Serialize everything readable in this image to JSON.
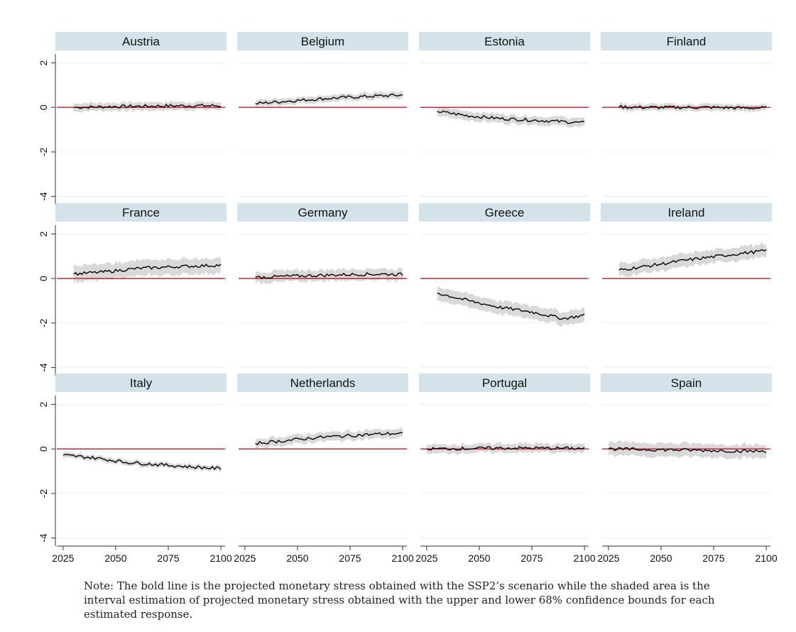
{
  "chart_data": {
    "type": "line",
    "layout": "3x4 small multiples",
    "x_ticks": [
      2025,
      2050,
      2075,
      2100
    ],
    "y_ticks": [
      2,
      0,
      -2,
      -4
    ],
    "xlim": [
      2022,
      2102
    ],
    "ylim": [
      -4.3,
      2.4
    ],
    "reference_line_y": 0,
    "grid": "horizontal",
    "colors": {
      "line": "#000000",
      "band": "#d9d9d9",
      "reference": "#c0172a",
      "strip": "#d4e3ea",
      "grid": "#ececec"
    },
    "panels": [
      {
        "title": "Austria",
        "start": 2030,
        "end": 2100,
        "points": [
          [
            2030,
            0.0
          ],
          [
            2045,
            0.03
          ],
          [
            2060,
            0.05
          ],
          [
            2075,
            0.07
          ],
          [
            2090,
            0.08
          ],
          [
            2100,
            0.07
          ]
        ],
        "band": 0.18
      },
      {
        "title": "Belgium",
        "start": 2030,
        "end": 2100,
        "points": [
          [
            2030,
            0.17
          ],
          [
            2045,
            0.28
          ],
          [
            2060,
            0.38
          ],
          [
            2075,
            0.46
          ],
          [
            2090,
            0.52
          ],
          [
            2100,
            0.55
          ]
        ],
        "band": 0.15
      },
      {
        "title": "Estonia",
        "start": 2030,
        "end": 2100,
        "points": [
          [
            2030,
            -0.18
          ],
          [
            2045,
            -0.38
          ],
          [
            2060,
            -0.5
          ],
          [
            2075,
            -0.57
          ],
          [
            2090,
            -0.64
          ],
          [
            2100,
            -0.7
          ]
        ],
        "band": 0.2
      },
      {
        "title": "Finland",
        "start": 2030,
        "end": 2100,
        "points": [
          [
            2030,
            0.02
          ],
          [
            2045,
            0.0
          ],
          [
            2060,
            0.0
          ],
          [
            2075,
            0.0
          ],
          [
            2090,
            -0.03
          ],
          [
            2100,
            -0.02
          ]
        ],
        "band": 0.15
      },
      {
        "title": "France",
        "start": 2030,
        "end": 2100,
        "points": [
          [
            2030,
            0.2
          ],
          [
            2045,
            0.3
          ],
          [
            2060,
            0.45
          ],
          [
            2075,
            0.52
          ],
          [
            2090,
            0.57
          ],
          [
            2100,
            0.6
          ]
        ],
        "band": 0.35
      },
      {
        "title": "Germany",
        "start": 2030,
        "end": 2100,
        "points": [
          [
            2030,
            0.05
          ],
          [
            2045,
            0.1
          ],
          [
            2060,
            0.14
          ],
          [
            2075,
            0.18
          ],
          [
            2090,
            0.2
          ],
          [
            2100,
            0.18
          ]
        ],
        "band": 0.25
      },
      {
        "title": "Greece",
        "start": 2030,
        "end": 2100,
        "points": [
          [
            2030,
            -0.65
          ],
          [
            2045,
            -1.0
          ],
          [
            2060,
            -1.3
          ],
          [
            2075,
            -1.5
          ],
          [
            2090,
            -1.8
          ],
          [
            2100,
            -1.65
          ]
        ],
        "band": 0.3
      },
      {
        "title": "Ireland",
        "start": 2030,
        "end": 2100,
        "points": [
          [
            2030,
            0.38
          ],
          [
            2045,
            0.58
          ],
          [
            2060,
            0.8
          ],
          [
            2075,
            0.98
          ],
          [
            2090,
            1.15
          ],
          [
            2100,
            1.25
          ]
        ],
        "band": 0.3
      },
      {
        "title": "Italy",
        "start": 2025,
        "end": 2100,
        "points": [
          [
            2025,
            -0.28
          ],
          [
            2040,
            -0.4
          ],
          [
            2055,
            -0.6
          ],
          [
            2070,
            -0.7
          ],
          [
            2085,
            -0.8
          ],
          [
            2100,
            -0.88
          ]
        ],
        "band": 0.12
      },
      {
        "title": "Netherlands",
        "start": 2030,
        "end": 2100,
        "points": [
          [
            2030,
            0.25
          ],
          [
            2045,
            0.38
          ],
          [
            2060,
            0.52
          ],
          [
            2075,
            0.6
          ],
          [
            2090,
            0.68
          ],
          [
            2100,
            0.7
          ]
        ],
        "band": 0.2
      },
      {
        "title": "Portugal",
        "start": 2025,
        "end": 2100,
        "points": [
          [
            2025,
            0.0
          ],
          [
            2045,
            0.02
          ],
          [
            2060,
            0.04
          ],
          [
            2075,
            0.04
          ],
          [
            2090,
            0.03
          ],
          [
            2100,
            0.02
          ]
        ],
        "band": 0.2
      },
      {
        "title": "Spain",
        "start": 2025,
        "end": 2100,
        "points": [
          [
            2025,
            0.0
          ],
          [
            2045,
            -0.03
          ],
          [
            2060,
            -0.05
          ],
          [
            2075,
            -0.07
          ],
          [
            2090,
            -0.1
          ],
          [
            2100,
            -0.1
          ]
        ],
        "band": 0.3
      }
    ]
  },
  "note": "Note: The bold line is the projected monetary stress obtained with the SSP2’s scenario while the shaded area is the interval estimation of projected monetary stress obtained with the upper and lower 68% confidence bounds for each estimated response."
}
